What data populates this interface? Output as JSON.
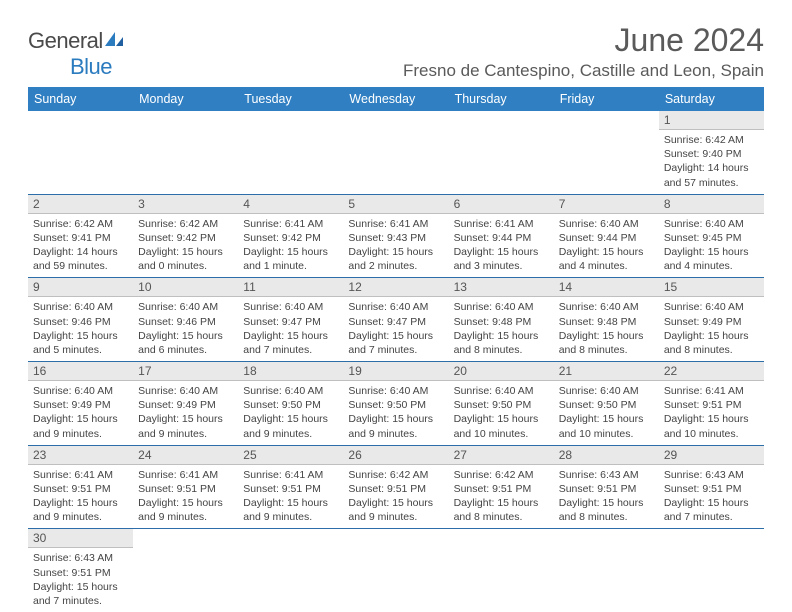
{
  "brand": {
    "part1": "General",
    "part2": "Blue"
  },
  "title": "June 2024",
  "location": "Fresno de Cantespino, Castille and Leon, Spain",
  "colors": {
    "header_bg": "#2f7fc2",
    "header_text": "#ffffff",
    "row_divider": "#2d6da8",
    "daynum_bg": "#e9e9e9",
    "text": "#444444",
    "brand_blue": "#2b7bbf"
  },
  "weekdays": [
    "Sunday",
    "Monday",
    "Tuesday",
    "Wednesday",
    "Thursday",
    "Friday",
    "Saturday"
  ],
  "weeks": [
    [
      null,
      null,
      null,
      null,
      null,
      null,
      {
        "n": "1",
        "sr": "6:42 AM",
        "ss": "9:40 PM",
        "dl": "14 hours and 57 minutes."
      }
    ],
    [
      {
        "n": "2",
        "sr": "6:42 AM",
        "ss": "9:41 PM",
        "dl": "14 hours and 59 minutes."
      },
      {
        "n": "3",
        "sr": "6:42 AM",
        "ss": "9:42 PM",
        "dl": "15 hours and 0 minutes."
      },
      {
        "n": "4",
        "sr": "6:41 AM",
        "ss": "9:42 PM",
        "dl": "15 hours and 1 minute."
      },
      {
        "n": "5",
        "sr": "6:41 AM",
        "ss": "9:43 PM",
        "dl": "15 hours and 2 minutes."
      },
      {
        "n": "6",
        "sr": "6:41 AM",
        "ss": "9:44 PM",
        "dl": "15 hours and 3 minutes."
      },
      {
        "n": "7",
        "sr": "6:40 AM",
        "ss": "9:44 PM",
        "dl": "15 hours and 4 minutes."
      },
      {
        "n": "8",
        "sr": "6:40 AM",
        "ss": "9:45 PM",
        "dl": "15 hours and 4 minutes."
      }
    ],
    [
      {
        "n": "9",
        "sr": "6:40 AM",
        "ss": "9:46 PM",
        "dl": "15 hours and 5 minutes."
      },
      {
        "n": "10",
        "sr": "6:40 AM",
        "ss": "9:46 PM",
        "dl": "15 hours and 6 minutes."
      },
      {
        "n": "11",
        "sr": "6:40 AM",
        "ss": "9:47 PM",
        "dl": "15 hours and 7 minutes."
      },
      {
        "n": "12",
        "sr": "6:40 AM",
        "ss": "9:47 PM",
        "dl": "15 hours and 7 minutes."
      },
      {
        "n": "13",
        "sr": "6:40 AM",
        "ss": "9:48 PM",
        "dl": "15 hours and 8 minutes."
      },
      {
        "n": "14",
        "sr": "6:40 AM",
        "ss": "9:48 PM",
        "dl": "15 hours and 8 minutes."
      },
      {
        "n": "15",
        "sr": "6:40 AM",
        "ss": "9:49 PM",
        "dl": "15 hours and 8 minutes."
      }
    ],
    [
      {
        "n": "16",
        "sr": "6:40 AM",
        "ss": "9:49 PM",
        "dl": "15 hours and 9 minutes."
      },
      {
        "n": "17",
        "sr": "6:40 AM",
        "ss": "9:49 PM",
        "dl": "15 hours and 9 minutes."
      },
      {
        "n": "18",
        "sr": "6:40 AM",
        "ss": "9:50 PM",
        "dl": "15 hours and 9 minutes."
      },
      {
        "n": "19",
        "sr": "6:40 AM",
        "ss": "9:50 PM",
        "dl": "15 hours and 9 minutes."
      },
      {
        "n": "20",
        "sr": "6:40 AM",
        "ss": "9:50 PM",
        "dl": "15 hours and 10 minutes."
      },
      {
        "n": "21",
        "sr": "6:40 AM",
        "ss": "9:50 PM",
        "dl": "15 hours and 10 minutes."
      },
      {
        "n": "22",
        "sr": "6:41 AM",
        "ss": "9:51 PM",
        "dl": "15 hours and 10 minutes."
      }
    ],
    [
      {
        "n": "23",
        "sr": "6:41 AM",
        "ss": "9:51 PM",
        "dl": "15 hours and 9 minutes."
      },
      {
        "n": "24",
        "sr": "6:41 AM",
        "ss": "9:51 PM",
        "dl": "15 hours and 9 minutes."
      },
      {
        "n": "25",
        "sr": "6:41 AM",
        "ss": "9:51 PM",
        "dl": "15 hours and 9 minutes."
      },
      {
        "n": "26",
        "sr": "6:42 AM",
        "ss": "9:51 PM",
        "dl": "15 hours and 9 minutes."
      },
      {
        "n": "27",
        "sr": "6:42 AM",
        "ss": "9:51 PM",
        "dl": "15 hours and 8 minutes."
      },
      {
        "n": "28",
        "sr": "6:43 AM",
        "ss": "9:51 PM",
        "dl": "15 hours and 8 minutes."
      },
      {
        "n": "29",
        "sr": "6:43 AM",
        "ss": "9:51 PM",
        "dl": "15 hours and 7 minutes."
      }
    ],
    [
      {
        "n": "30",
        "sr": "6:43 AM",
        "ss": "9:51 PM",
        "dl": "15 hours and 7 minutes."
      },
      null,
      null,
      null,
      null,
      null,
      null
    ]
  ],
  "labels": {
    "sunrise": "Sunrise:",
    "sunset": "Sunset:",
    "daylight": "Daylight:"
  }
}
